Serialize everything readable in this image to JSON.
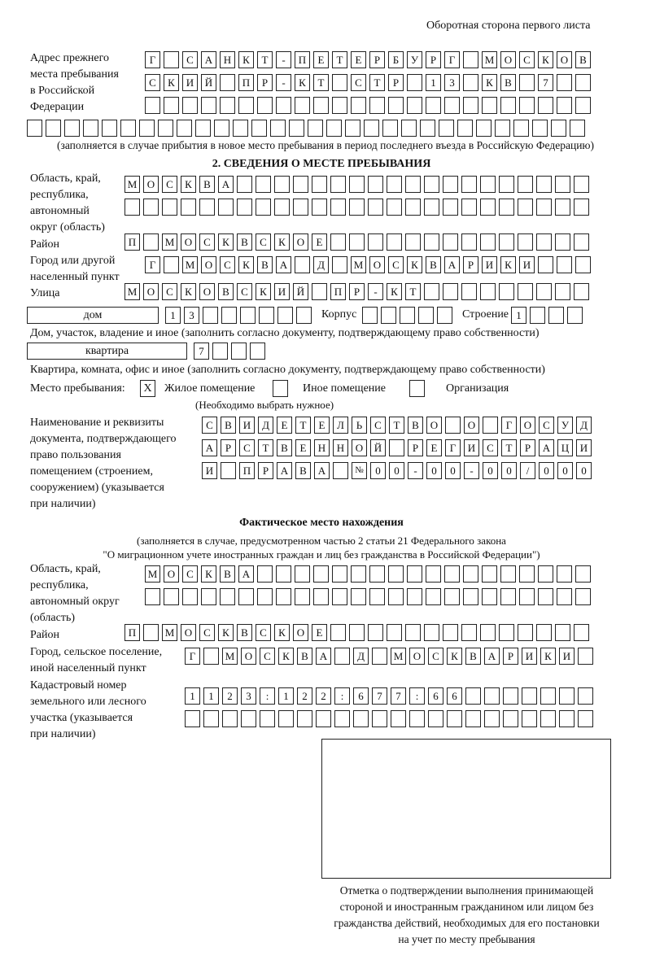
{
  "header": {
    "side_note": "Оборотная сторона первого листа"
  },
  "prev_address": {
    "label": [
      "Адрес прежнего",
      "места пребывания",
      "в Российской",
      "Федерации"
    ],
    "rows": [
      "Г САНКТ-ПЕТЕРБУРГ МОСКОВ",
      "СКИЙ ПР-КТ СТР 13 КВ 7",
      "",
      ""
    ],
    "note": "(заполняется в случае прибытия в новое место пребывания в период последнего въезда в Российскую Федерацию)"
  },
  "section2": {
    "title": "2. СВЕДЕНИЯ О МЕСТЕ ПРЕБЫВАНИЯ",
    "region_label": [
      "Область, край,",
      "республика,",
      "автономный",
      "округ (область)"
    ],
    "region_rows": [
      "МОСКВА",
      ""
    ],
    "district_label": "Район",
    "district": "П МОСКВСКОЕ",
    "city_label": [
      "Город или другой",
      "населенный пункт"
    ],
    "city": "Г МОСКВА Д МОСКВАРИКИ",
    "street_label": "Улица",
    "street": "МОСКОВСКИЙ ПР-КТ",
    "house_type": "дом",
    "house": "13",
    "korpus_label": "Корпус",
    "korpus": "",
    "building_label": "Строение",
    "building": "1",
    "house_note": "Дом, участок, владение и иное (заполнить согласно документу, подтверждающему право собственности)",
    "apt_type": "квартира",
    "apt": "7",
    "apt_note": "Квартира, комната, офис и иное (заполнить согласно документу, подтверждающему право собственности)",
    "stay_label": "Место пребывания:",
    "options": [
      {
        "label": "Жилое помещение",
        "mark": "X"
      },
      {
        "label": "Иное помещение",
        "mark": ""
      },
      {
        "label": "Организация",
        "mark": ""
      }
    ],
    "choose_note": "(Необходимо выбрать нужное)",
    "doc_label": [
      "Наименование и реквизиты",
      "документа, подтверждающего",
      "право пользования",
      "помещением (строением,",
      "сооружением) (указывается",
      "при наличии)"
    ],
    "doc_rows": [
      "СВИДЕТЕЛЬСТВО О ГОСУД",
      "АРСТВЕННОЙ РЕГИСТРАЦИ",
      "И ПРАВА №00-00-00/000"
    ]
  },
  "actual": {
    "title": "Фактическое место нахождения",
    "note": [
      "(заполняется в случае, предусмотренном частью 2 статьи 21 Федерального закона",
      "\"О миграционном учете иностранных граждан и лиц без гражданства в Российской Федерации\")"
    ],
    "region_label": [
      "Область, край,",
      "республика,",
      "автономный округ",
      "(область)"
    ],
    "region_rows": [
      "МОСКВА",
      ""
    ],
    "district_label": "Район",
    "district": "П МОСКВСКОЕ",
    "city_label": [
      "Город, сельское поселение,",
      "иной населенный пункт"
    ],
    "city": "Г МОСКВА Д МОСКВАРИКИ",
    "cadastre_label": [
      "Кадастровый номер",
      "земельного или лесного",
      "участка (указывается",
      "при наличии)"
    ],
    "cadastre_rows": [
      "1123:122:677:66",
      ""
    ]
  },
  "stamp": {
    "caption": [
      "Отметка о подтверждении выполнения принимающей",
      "стороной и иностранным гражданином или лицом без",
      "гражданства действий, необходимых для его постановки",
      "на учет по месту пребывания"
    ]
  }
}
